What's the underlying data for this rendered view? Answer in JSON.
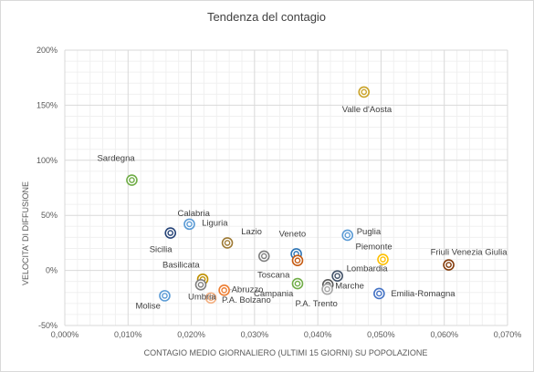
{
  "chart_data": {
    "type": "scatter",
    "title": "Tendenza del contagio",
    "xlabel": "CONTAGIO MEDIO GIORNALIERO (ULTIMI 15 GIORNI) SU POPOLAZIONE",
    "ylabel": "VELOCITA' DI DIFFUSIONE",
    "xlim": [
      0,
      0.07
    ],
    "ylim": [
      -50,
      200
    ],
    "x_ticks": [
      "0,000%",
      "0,010%",
      "0,020%",
      "0,030%",
      "0,040%",
      "0,050%",
      "0,060%",
      "0,070%"
    ],
    "y_ticks": [
      "-50%",
      "0%",
      "50%",
      "100%",
      "150%",
      "200%"
    ],
    "grid": true,
    "legend": "none",
    "points": [
      {
        "label": "Valle d'Aosta",
        "x": 0.0473,
        "y": 162,
        "color": "#c9a227"
      },
      {
        "label": "Sardegna",
        "x": 0.0106,
        "y": 82,
        "color": "#70ad47"
      },
      {
        "label": "Calabria",
        "x": 0.0197,
        "y": 42,
        "color": "#5b9bd5"
      },
      {
        "label": "Sicilia",
        "x": 0.0167,
        "y": 34,
        "color": "#264478"
      },
      {
        "label": "Liguria",
        "x": 0.0257,
        "y": 25,
        "color": "#9e7a35"
      },
      {
        "label": "Lazio",
        "x": 0.0315,
        "y": 13,
        "color": "#7f7f7f"
      },
      {
        "label": "Veneto",
        "x": 0.0366,
        "y": 15,
        "color": "#2e75b6"
      },
      {
        "label": "Toscana",
        "x": 0.0368,
        "y": 9,
        "color": "#c55a11"
      },
      {
        "label": "Puglia",
        "x": 0.0447,
        "y": 32,
        "color": "#5b9bd5"
      },
      {
        "label": "Piemonte",
        "x": 0.0503,
        "y": 10,
        "color": "#ffc000"
      },
      {
        "label": "Friuli Venezia Giulia",
        "x": 0.0607,
        "y": 5,
        "color": "#843c0c"
      },
      {
        "label": "Lombardia",
        "x": 0.0431,
        "y": -5,
        "color": "#44546a"
      },
      {
        "label": "Basilicata",
        "x": 0.0218,
        "y": -8,
        "color": "#bf9000"
      },
      {
        "label": "Abruzzo",
        "x": 0.0252,
        "y": -18,
        "color": "#ed7d31"
      },
      {
        "label": "Campania",
        "x": 0.0368,
        "y": -12,
        "color": "#70ad47"
      },
      {
        "label": "Marche",
        "x": 0.0416,
        "y": -13,
        "color": "#595959"
      },
      {
        "label": "Umbria",
        "x": 0.0215,
        "y": -13,
        "color": "#7f7f7f"
      },
      {
        "label": "P.A. Bolzano",
        "x": 0.0231,
        "y": -25,
        "color": "#f4b183"
      },
      {
        "label": "P.A. Trento",
        "x": 0.0415,
        "y": -17,
        "color": "#a5a5a5"
      },
      {
        "label": "Emilia-Romagna",
        "x": 0.0497,
        "y": -21,
        "color": "#4472c4"
      },
      {
        "label": "Molise",
        "x": 0.0158,
        "y": -23,
        "color": "#5b9bd5"
      }
    ]
  }
}
